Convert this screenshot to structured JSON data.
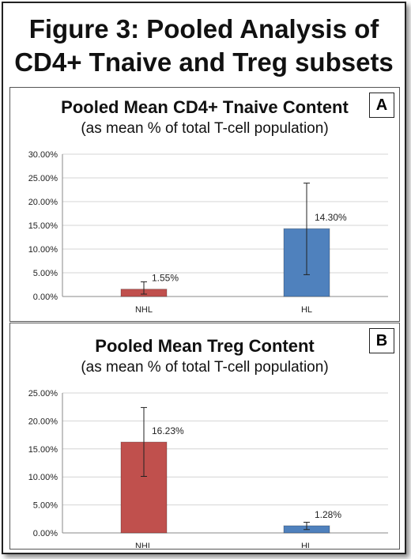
{
  "figure": {
    "title_line1": "Figure 3: Pooled Analysis of",
    "title_line2": "CD4+ Tnaive and Treg subsets"
  },
  "chart_data": [
    {
      "type": "bar",
      "panel_label": "A",
      "title": "Pooled Mean CD4+ Tnaive Content",
      "subtitle": "(as mean % of total T-cell population)",
      "categories": [
        "NHL",
        "HL"
      ],
      "values": [
        1.55,
        14.3
      ],
      "error_low": [
        0.5,
        4.6
      ],
      "error_high": [
        3.1,
        23.9
      ],
      "data_labels": [
        "1.55%",
        "14.30%"
      ],
      "colors": [
        "#c0504d",
        "#4f81bd"
      ],
      "ylim": [
        0,
        30
      ],
      "yticks": [
        "0.00%",
        "5.00%",
        "10.00%",
        "15.00%",
        "20.00%",
        "25.00%",
        "30.00%"
      ],
      "ytick_values": [
        0,
        5,
        10,
        15,
        20,
        25,
        30
      ],
      "grid": true
    },
    {
      "type": "bar",
      "panel_label": "B",
      "title": "Pooled Mean Treg Content",
      "subtitle": "(as mean % of total T-cell population)",
      "categories": [
        "NHL",
        "HL"
      ],
      "values": [
        16.23,
        1.28
      ],
      "error_low": [
        10.1,
        0.6
      ],
      "error_high": [
        22.4,
        1.9
      ],
      "data_labels": [
        "16.23%",
        "1.28%"
      ],
      "colors": [
        "#c0504d",
        "#4f81bd"
      ],
      "ylim": [
        0,
        25
      ],
      "yticks": [
        "0.00%",
        "5.00%",
        "10.00%",
        "15.00%",
        "20.00%",
        "25.00%"
      ],
      "ytick_values": [
        0,
        5,
        10,
        15,
        20,
        25
      ],
      "grid": true
    }
  ]
}
